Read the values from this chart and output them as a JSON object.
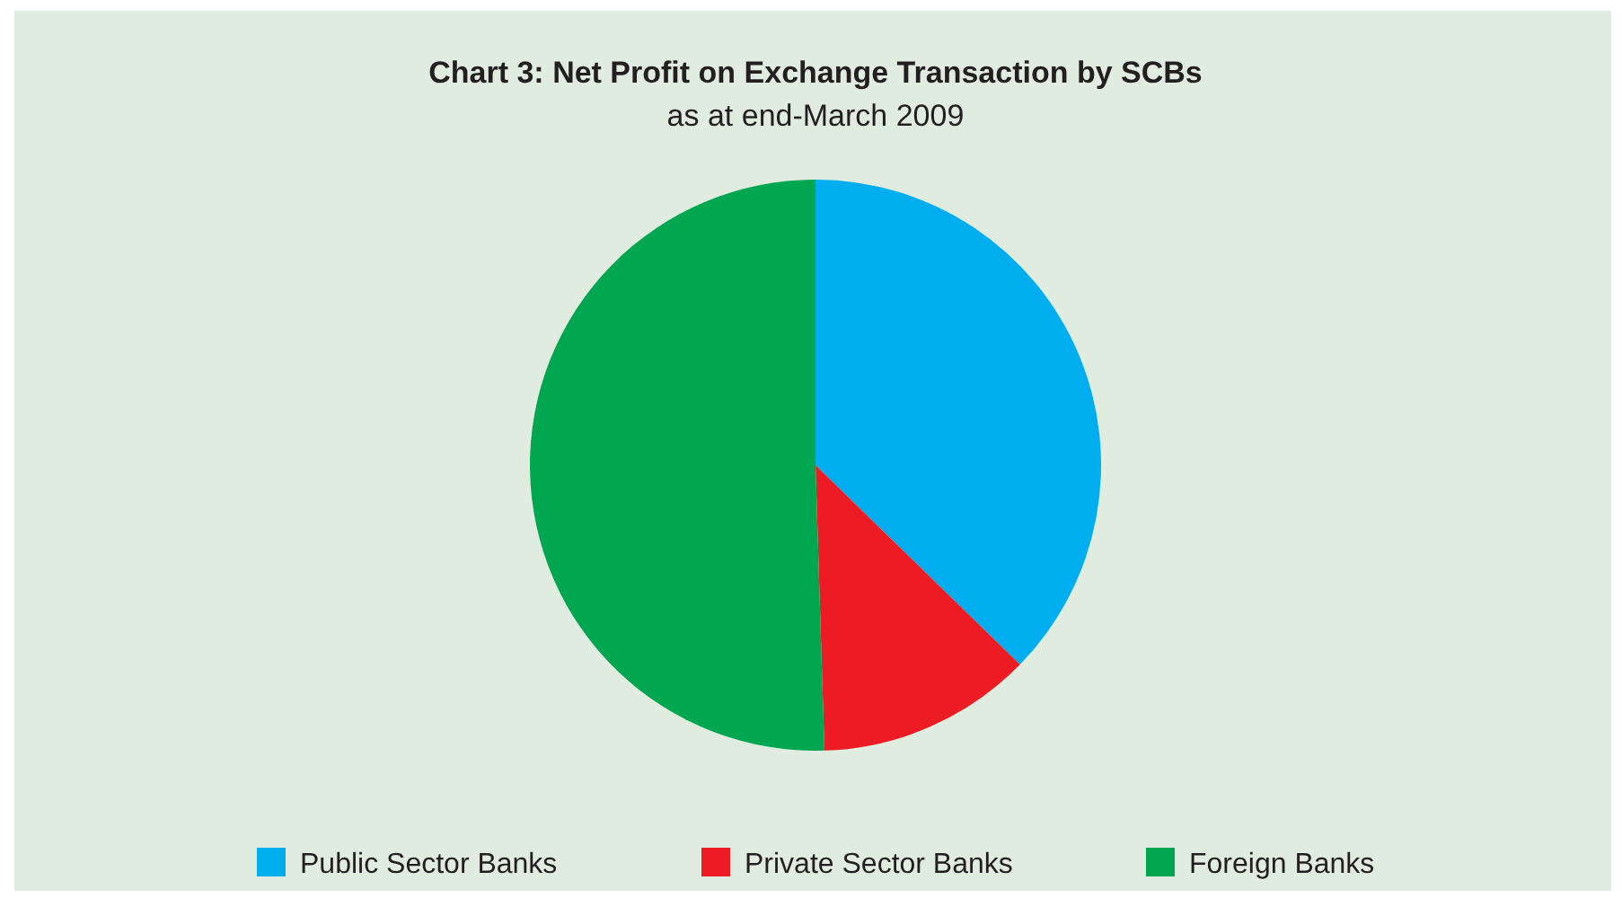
{
  "chart_data": {
    "type": "pie",
    "title": "Chart 3: Net Profit on Exchange Transaction by SCBs",
    "subtitle": "as at end-March 2009",
    "categories": [
      "Public Sector Banks",
      "Private Sector Banks",
      "Foreign Banks"
    ],
    "values": [
      37.3,
      12.2,
      50.5
    ],
    "colors": [
      "#00aeef",
      "#ed1c24",
      "#00a650"
    ],
    "legend": "bottom"
  }
}
